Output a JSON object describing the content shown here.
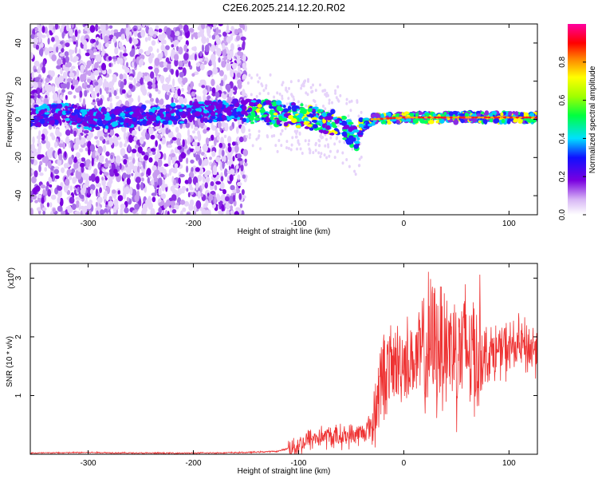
{
  "title": "C2E6.2025.214.12.20.R02",
  "chart_data": [
    {
      "type": "heatmap",
      "xlabel": "Height of straight line (km)",
      "ylabel": "Frequency (Hz)",
      "xlim": [
        -355,
        127
      ],
      "ylim": [
        -50,
        50
      ],
      "xticks": [
        -300,
        -200,
        -100,
        0,
        100
      ],
      "yticks": [
        -40,
        -20,
        0,
        20,
        40
      ],
      "colorbar": {
        "label": "Normalized spectral amplitude",
        "range": [
          0,
          1
        ],
        "ticks": [
          "0.0",
          "0.2",
          "0.4",
          "0.6",
          "0.8"
        ],
        "tick_values": [
          0.0,
          0.2,
          0.4,
          0.6,
          0.8
        ],
        "colormap": "rainbow (white-purple-blue-cyan-green-yellow-red-magenta)"
      },
      "ridge": {
        "x": [
          -350,
          -320,
          -300,
          -160,
          -140,
          -120,
          -100,
          -80,
          -60,
          -50,
          -45,
          -40,
          -30,
          0,
          50,
          100,
          127
        ],
        "y": [
          2,
          3,
          0,
          5,
          4,
          3,
          2,
          0,
          -3,
          -8,
          -10,
          -4,
          0,
          1,
          1,
          1,
          1
        ]
      }
    },
    {
      "type": "line",
      "xlabel": "Height of straight line (km)",
      "ylabel": "SNR (10 * v/v)",
      "yscale_label": "(x10",
      "yscale_exponent": "4",
      "xlim": [
        -355,
        127
      ],
      "ylim": [
        0,
        3.25
      ],
      "xticks": [
        -300,
        -200,
        -100,
        0,
        100
      ],
      "yticks": [
        1,
        2,
        3
      ],
      "color": "#ee3333",
      "series": [
        {
          "x": [
            -355,
            -300,
            -250,
            -200,
            -150,
            -120,
            -100,
            -90,
            -80,
            -70,
            -60,
            -50,
            -40,
            -30,
            -25,
            -20,
            -15,
            -10,
            0,
            10,
            20,
            30,
            40,
            50,
            60,
            70,
            80,
            90,
            100,
            110,
            120,
            127
          ],
          "y": [
            0.02,
            0.03,
            0.02,
            0.02,
            0.03,
            0.05,
            0.15,
            0.25,
            0.3,
            0.3,
            0.3,
            0.32,
            0.35,
            0.5,
            1.0,
            1.35,
            1.45,
            1.5,
            1.6,
            1.6,
            1.7,
            1.9,
            1.9,
            1.8,
            1.8,
            1.75,
            1.7,
            1.75,
            1.8,
            1.85,
            1.8,
            1.8
          ]
        }
      ]
    }
  ]
}
